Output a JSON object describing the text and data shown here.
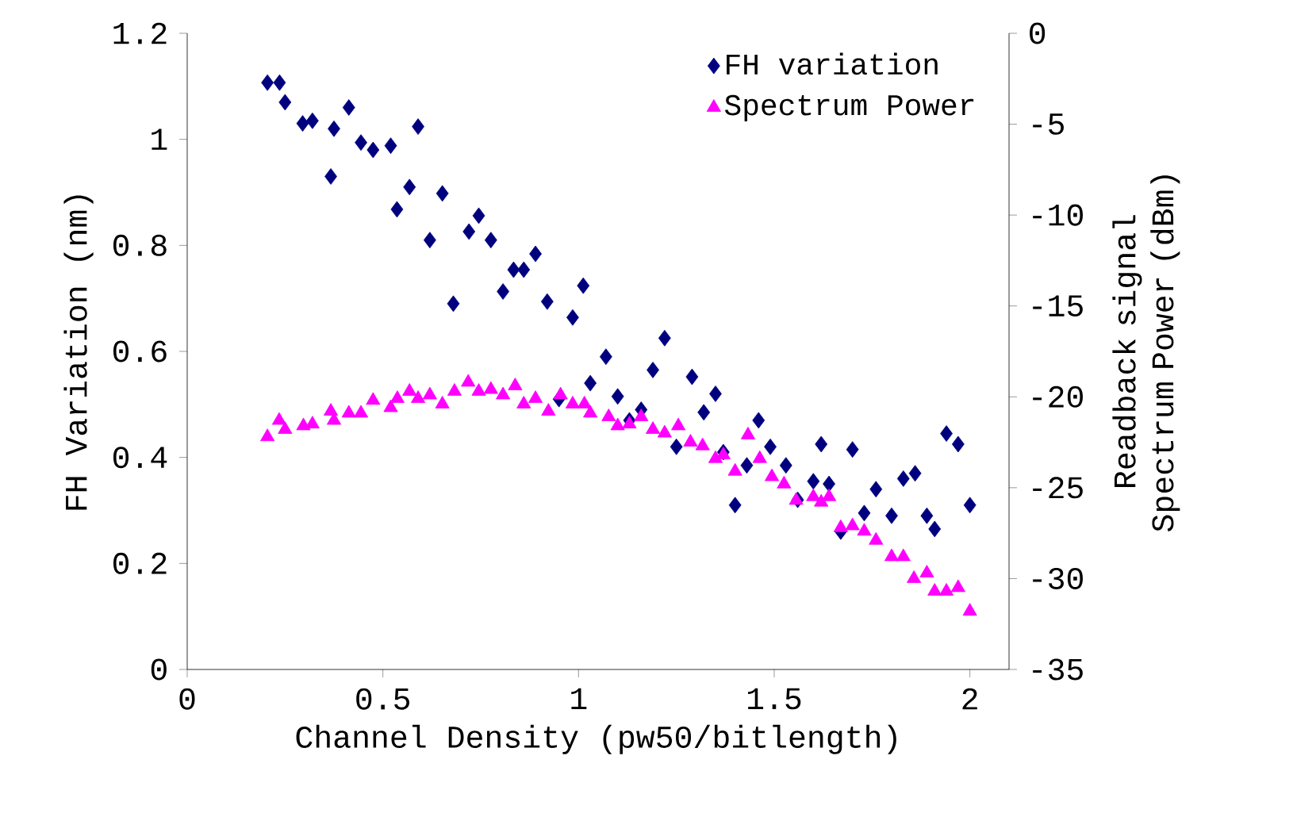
{
  "chart_data": {
    "type": "scatter",
    "xlabel": "Channel Density (pw50/bitlength)",
    "ylabel": "FH Variation (nm)",
    "y2label": "Readback signal Spectrum Power (dBm)",
    "xlim": [
      0,
      2.1
    ],
    "xticks": [
      0,
      0.5,
      1,
      1.5,
      2
    ],
    "ylim": [
      0,
      1.2
    ],
    "yticks": [
      0,
      0.2,
      0.4,
      0.6,
      0.8,
      1,
      1.2
    ],
    "y2lim": [
      -35,
      0
    ],
    "y2ticks": [
      -35,
      -30,
      -25,
      -20,
      -15,
      -10,
      -5,
      0
    ],
    "legend": "top right",
    "grid": false,
    "series": [
      {
        "name": "FH variation",
        "color": "#00007f",
        "marker": "diamond",
        "x": [
          0.205,
          0.236,
          0.25,
          0.295,
          0.32,
          0.367,
          0.375,
          0.413,
          0.444,
          0.475,
          0.52,
          0.536,
          0.568,
          0.59,
          0.62,
          0.652,
          0.68,
          0.72,
          0.745,
          0.776,
          0.807,
          0.834,
          0.86,
          0.89,
          0.92,
          0.95,
          0.985,
          1.012,
          1.03,
          1.07,
          1.1,
          1.13,
          1.16,
          1.19,
          1.22,
          1.25,
          1.29,
          1.32,
          1.35,
          1.37,
          1.4,
          1.43,
          1.46,
          1.49,
          1.53,
          1.56,
          1.6,
          1.62,
          1.64,
          1.67,
          1.7,
          1.73,
          1.76,
          1.8,
          1.83,
          1.86,
          1.89,
          1.91,
          1.94,
          1.97,
          2.0
        ],
        "values": [
          1.107,
          1.107,
          1.07,
          1.03,
          1.035,
          0.93,
          1.02,
          1.06,
          0.994,
          0.98,
          0.988,
          0.868,
          0.91,
          1.024,
          0.81,
          0.898,
          0.69,
          0.826,
          0.856,
          0.81,
          0.713,
          0.754,
          0.754,
          0.784,
          0.694,
          0.51,
          0.664,
          0.724,
          0.54,
          0.59,
          0.515,
          0.47,
          0.49,
          0.565,
          0.625,
          0.42,
          0.552,
          0.485,
          0.52,
          0.41,
          0.31,
          0.385,
          0.47,
          0.42,
          0.385,
          0.32,
          0.355,
          0.425,
          0.35,
          0.26,
          0.415,
          0.295,
          0.34,
          0.29,
          0.36,
          0.37,
          0.29,
          0.265,
          0.445,
          0.425,
          0.31
        ]
      },
      {
        "name": "Spectrum Power",
        "color": "#ff00ff",
        "marker": "triangle",
        "axis": "y2",
        "x": [
          0.205,
          0.235,
          0.25,
          0.297,
          0.32,
          0.367,
          0.375,
          0.413,
          0.444,
          0.475,
          0.52,
          0.537,
          0.568,
          0.59,
          0.62,
          0.652,
          0.683,
          0.718,
          0.745,
          0.776,
          0.807,
          0.838,
          0.86,
          0.89,
          0.923,
          0.954,
          0.985,
          1.015,
          1.03,
          1.077,
          1.1,
          1.13,
          1.16,
          1.19,
          1.22,
          1.255,
          1.286,
          1.317,
          1.35,
          1.37,
          1.4,
          1.433,
          1.463,
          1.494,
          1.525,
          1.556,
          1.6,
          1.62,
          1.64,
          1.67,
          1.7,
          1.73,
          1.76,
          1.8,
          1.83,
          1.857,
          1.89,
          1.91,
          1.94,
          1.97,
          2.0
        ],
        "values": [
          -22.2,
          -21.3,
          -21.8,
          -21.6,
          -21.5,
          -20.8,
          -21.3,
          -20.9,
          -20.9,
          -20.2,
          -20.6,
          -20.1,
          -19.7,
          -20.1,
          -19.9,
          -20.4,
          -19.7,
          -19.2,
          -19.7,
          -19.6,
          -19.9,
          -19.4,
          -20.4,
          -20.1,
          -20.8,
          -19.9,
          -20.4,
          -20.4,
          -20.9,
          -21.1,
          -21.6,
          -21.5,
          -21.1,
          -21.8,
          -22.0,
          -21.6,
          -22.5,
          -22.7,
          -23.4,
          -23.2,
          -24.1,
          -22.1,
          -23.4,
          -24.4,
          -24.8,
          -25.7,
          -25.5,
          -25.8,
          -25.5,
          -27.2,
          -27.1,
          -27.4,
          -27.9,
          -28.8,
          -28.8,
          -30.0,
          -29.7,
          -30.7,
          -30.7,
          -30.5,
          -31.8
        ]
      }
    ]
  }
}
